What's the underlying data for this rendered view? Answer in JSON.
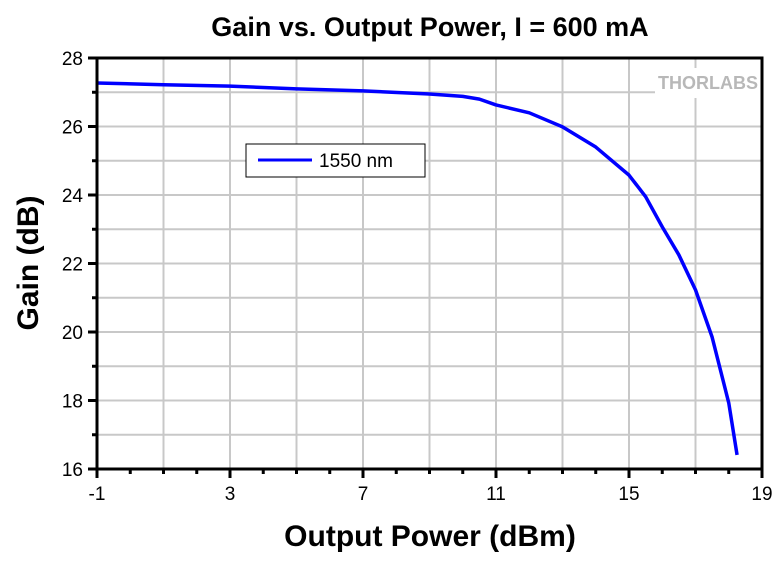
{
  "chart_data": {
    "type": "line",
    "title": "Gain vs. Output Power, I = 600 mA",
    "xlabel": "Output Power (dBm)",
    "ylabel": "Gain (dB)",
    "xlim": [
      -1,
      19
    ],
    "ylim": [
      16,
      28
    ],
    "xticks": [
      -1,
      3,
      7,
      11,
      15,
      19
    ],
    "yticks": [
      16,
      18,
      20,
      22,
      24,
      26,
      28
    ],
    "grid": true,
    "legend_position": "upper-left",
    "watermark": "THORLABS",
    "series": [
      {
        "name": "1550 nm",
        "color": "#0000ff",
        "x": [
          -1,
          1,
          3,
          5,
          7,
          9,
          10,
          10.5,
          11,
          12,
          13,
          14,
          15,
          15.5,
          16,
          16.5,
          17,
          17.5,
          18,
          18.25
        ],
        "y": [
          27.27,
          27.22,
          27.18,
          27.1,
          27.04,
          26.95,
          26.88,
          26.8,
          26.63,
          26.4,
          25.99,
          25.4,
          24.58,
          23.95,
          23.07,
          22.25,
          21.23,
          19.85,
          17.93,
          16.41
        ]
      }
    ]
  }
}
